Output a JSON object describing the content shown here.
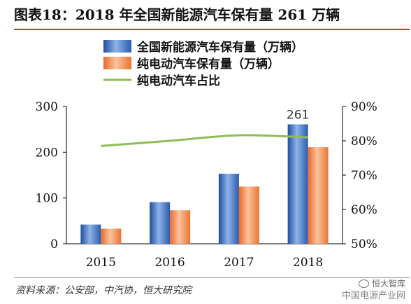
{
  "title": "图表18：2018 年全国新能源汽车保有量 261 万辆",
  "source": "资料来源：公安部，中汽协，恒大研究院",
  "watermark": {
    "line1": "恒大智库",
    "line2": "中国电源产业网"
  },
  "colors": {
    "series1": "#4a79c6",
    "series2": "#ef8c4f",
    "line": "#8fbd5a",
    "title_rule": "#c0392b"
  },
  "chart_data": {
    "type": "bar",
    "categories": [
      "2015",
      "2016",
      "2017",
      "2018"
    ],
    "series": [
      {
        "name": "全国新能源汽车保有量（万辆）",
        "axis": "left",
        "kind": "bar",
        "values": [
          42,
          91,
          153,
          261
        ]
      },
      {
        "name": "纯电动汽车保有量（万辆）",
        "axis": "left",
        "kind": "bar",
        "values": [
          33,
          73,
          125,
          211
        ]
      },
      {
        "name": "纯电动汽车占比",
        "axis": "right",
        "kind": "line",
        "values": [
          78.5,
          80,
          81.6,
          81
        ]
      }
    ],
    "data_labels": [
      {
        "series": 0,
        "index": 3,
        "text": "261"
      }
    ],
    "y_left": {
      "min": 0,
      "max": 300,
      "ticks": [
        0,
        100,
        200,
        300
      ]
    },
    "y_right": {
      "min": 50,
      "max": 90,
      "ticks": [
        "50%",
        "60%",
        "70%",
        "80%",
        "90%"
      ]
    },
    "legend_position": "top-center",
    "grid": false
  }
}
